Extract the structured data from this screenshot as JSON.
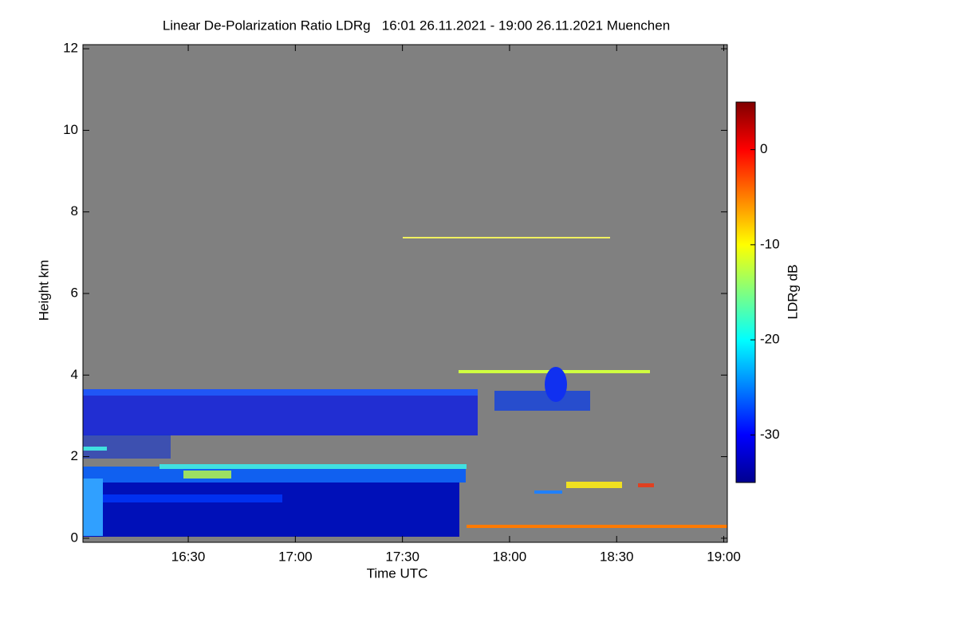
{
  "chart_data": {
    "type": "heatmap",
    "title": "Linear De-Polarization Ratio LDRg   16:01 26.11.2021 - 19:00 26.11.2021 Muenchen",
    "x_label": "Time UTC",
    "y_label": "Height km",
    "xlim": [
      960.5,
      1141
    ],
    "xticks": [
      {
        "value": 990,
        "label": "16:30"
      },
      {
        "value": 1020,
        "label": "17:00"
      },
      {
        "value": 1050,
        "label": "17:30"
      },
      {
        "value": 1080,
        "label": "18:00"
      },
      {
        "value": 1110,
        "label": "18:30"
      },
      {
        "value": 1140,
        "label": "19:00"
      }
    ],
    "ylim": [
      -0.1,
      12.1
    ],
    "yticks": [
      0,
      2,
      4,
      6,
      8,
      10,
      12
    ],
    "colorbar": {
      "label": "LDRg dB",
      "lim": [
        -35,
        5
      ],
      "ticks": [
        0,
        -10,
        -20,
        -30
      ],
      "colormap": [
        "#00008f",
        "#0000ff",
        "#0080ff",
        "#00ffff",
        "#80ff80",
        "#ffff00",
        "#ff8000",
        "#ff0000",
        "#800000"
      ]
    }
  }
}
